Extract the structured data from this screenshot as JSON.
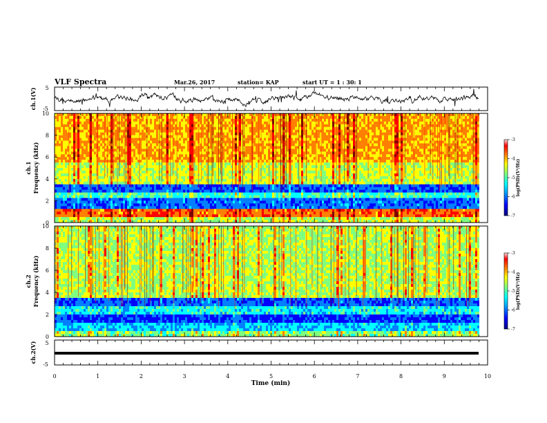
{
  "header": {
    "title": "VLF Spectra",
    "date": "Mar.26, 2017",
    "station": "station= KAP",
    "start": "start UT =  1 : 30: 1"
  },
  "chart_data": [
    {
      "type": "line",
      "name": "waveform-ch1",
      "ylabel": "ch.1(V)",
      "ylim": [
        -5,
        5
      ],
      "y_ticks": [
        "5",
        "-5"
      ],
      "x_range": [
        0,
        10
      ]
    },
    {
      "type": "heatmap",
      "name": "spectrogram-ch1",
      "ylabel": "ch.1\nFrequency (kHz)",
      "ylim": [
        0,
        10
      ],
      "y_ticks": [
        "0",
        "2",
        "4",
        "6",
        "8",
        "10"
      ],
      "x_range": [
        0,
        10
      ],
      "colorbar": {
        "label": "log(PSD)(V²/Hz)",
        "range": [
          -7,
          -3
        ],
        "ticks": [
          "-3",
          "-4",
          "-5",
          "-6",
          "-7"
        ]
      }
    },
    {
      "type": "heatmap",
      "name": "spectrogram-ch2",
      "ylabel": "ch.2\nFrequency (kHz)",
      "ylim": [
        0,
        10
      ],
      "y_ticks": [
        "0",
        "2",
        "4",
        "6",
        "8",
        "10"
      ],
      "x_range": [
        0,
        10
      ],
      "colorbar": {
        "label": "log(PSD)(V²/Hz)",
        "range": [
          -7,
          -3
        ],
        "ticks": [
          "-3",
          "-4",
          "-5",
          "-6",
          "-7"
        ]
      }
    },
    {
      "type": "line",
      "name": "waveform-ch2",
      "ylabel": "ch.2(V)",
      "ylim": [
        -5,
        5
      ],
      "y_ticks": [
        "5",
        "-5"
      ],
      "x_range": [
        0,
        10
      ]
    }
  ],
  "xaxis": {
    "label": "Time (min)",
    "ticks": [
      "0",
      "1",
      "2",
      "3",
      "4",
      "5",
      "6",
      "7",
      "8",
      "9",
      "10"
    ]
  },
  "colors": {
    "jet": [
      "#00007f",
      "#0000ff",
      "#007fff",
      "#00ffff",
      "#7fff7f",
      "#ffff00",
      "#ff7f00",
      "#ff0000",
      "#7f0000"
    ]
  }
}
